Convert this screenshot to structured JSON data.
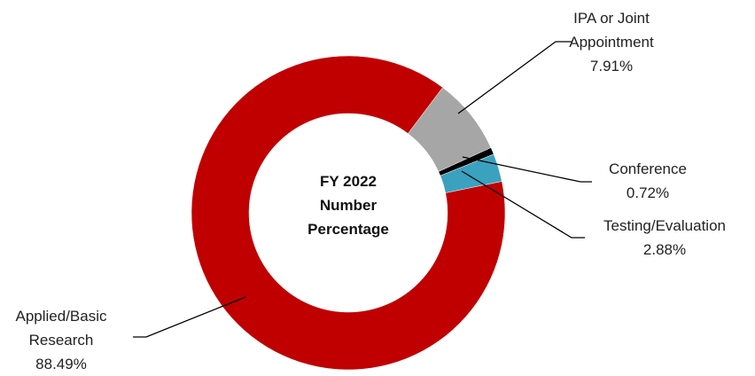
{
  "chart_data": {
    "type": "donut",
    "title": "FY 2022 Number Percentage",
    "categories": [
      "IPA or Joint Appointment",
      "Conference",
      "Testing/Evaluation",
      "Applied/Basic Research"
    ],
    "values": [
      7.91,
      0.72,
      2.88,
      88.49
    ],
    "value_labels": [
      "7.91%",
      "0.72%",
      "2.88%",
      "88.49%"
    ],
    "colors": [
      "#a6a6a6",
      "#000000",
      "#3aa1bf",
      "#c00000"
    ]
  }
}
